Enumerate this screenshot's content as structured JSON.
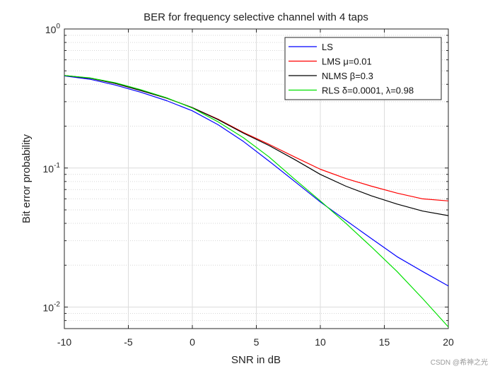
{
  "chart_data": {
    "type": "line",
    "title": "BER for frequency selective channel with 4 taps",
    "xlabel": "SNR in dB",
    "ylabel": "Bit error probability",
    "xlim": [
      -10,
      20
    ],
    "ylim": [
      0.007,
      1
    ],
    "yscale": "log",
    "grid": true,
    "x_ticks": [
      -10,
      -5,
      0,
      5,
      10,
      15,
      20
    ],
    "x_tick_labels": [
      "-10",
      "-5",
      "0",
      "5",
      "10",
      "15",
      "20"
    ],
    "y_ticks": [
      0.01,
      0.1,
      1
    ],
    "y_tick_labels": [
      {
        "base": "10",
        "exp": "-2"
      },
      {
        "base": "10",
        "exp": "-1"
      },
      {
        "base": "10",
        "exp": "0"
      }
    ],
    "legend_position": "top-right",
    "x": [
      -10,
      -8,
      -6,
      -4,
      -2,
      0,
      2,
      4,
      6,
      8,
      10,
      12,
      14,
      16,
      18,
      20
    ],
    "series": [
      {
        "name": "LS",
        "legend_label": "LS",
        "color": "#0000ff",
        "values": [
          0.46,
          0.435,
          0.395,
          0.35,
          0.305,
          0.258,
          0.205,
          0.155,
          0.112,
          0.08,
          0.057,
          0.042,
          0.031,
          0.023,
          0.018,
          0.0142
        ]
      },
      {
        "name": "LMS",
        "legend_label": "LMS μ=0.01",
        "color": "#ff0000",
        "values": [
          0.463,
          0.443,
          0.405,
          0.36,
          0.318,
          0.272,
          0.225,
          0.18,
          0.148,
          0.12,
          0.098,
          0.084,
          0.074,
          0.066,
          0.06,
          0.058
        ]
      },
      {
        "name": "NLMS",
        "legend_label": "NLMS β=0.3",
        "color": "#000000",
        "values": [
          0.463,
          0.443,
          0.405,
          0.36,
          0.318,
          0.272,
          0.223,
          0.178,
          0.145,
          0.115,
          0.09,
          0.074,
          0.063,
          0.055,
          0.049,
          0.0455
        ]
      },
      {
        "name": "RLS",
        "legend_label": "RLS  δ=0.0001, λ=0.98",
        "color": "#00e000",
        "values": [
          0.463,
          0.445,
          0.41,
          0.365,
          0.32,
          0.27,
          0.215,
          0.165,
          0.12,
          0.083,
          0.058,
          0.04,
          0.027,
          0.018,
          0.0115,
          0.0072
        ]
      }
    ]
  },
  "watermark": "CSDN @希神之光"
}
